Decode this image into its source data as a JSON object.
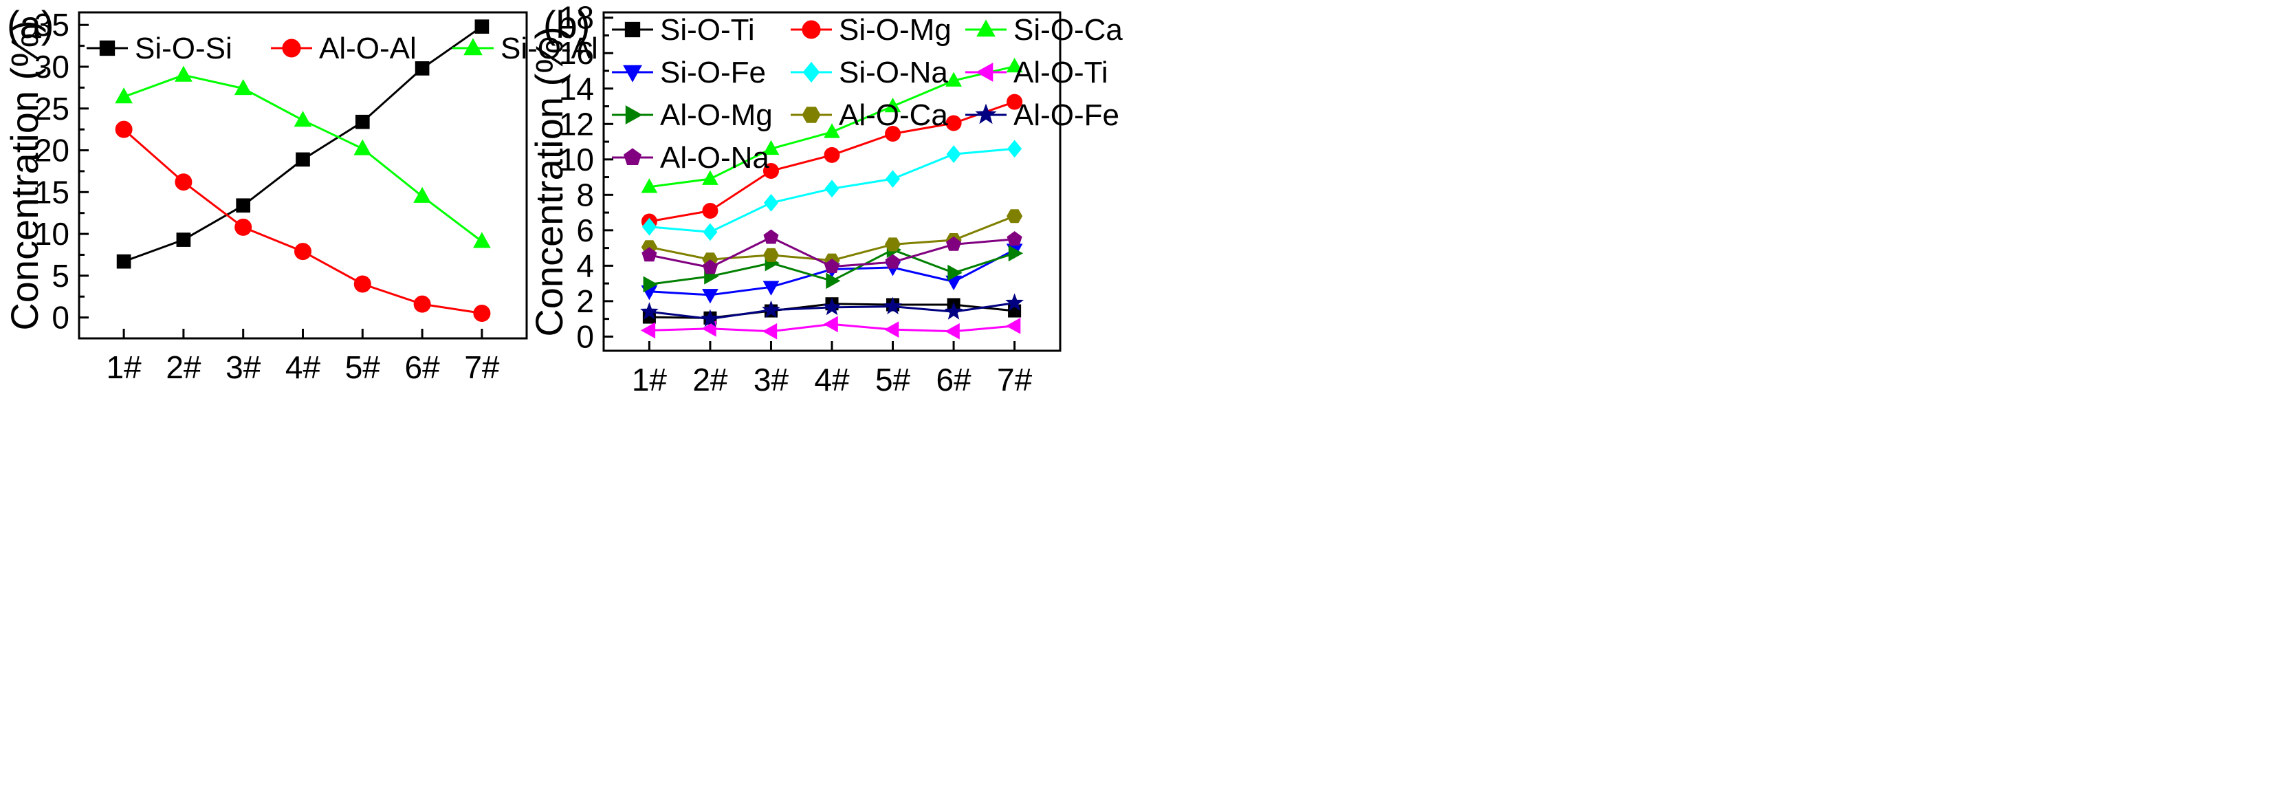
{
  "chart_data": [
    {
      "panel_label": "(a)",
      "type": "line",
      "categories": [
        "1#",
        "2#",
        "3#",
        "4#",
        "5#",
        "6#",
        "7#"
      ],
      "ylabel": "Concentration (%)",
      "xlabel": "",
      "ylim": [
        -2.5,
        36.5
      ],
      "yticks": [
        "0",
        "5",
        "10",
        "15",
        "20",
        "25",
        "30",
        "35"
      ],
      "legend_position": "top-left",
      "series": [
        {
          "name": "Si-O-Si",
          "color": "#000000",
          "marker": "square",
          "values": [
            6.7,
            9.3,
            13.4,
            18.9,
            23.4,
            29.8,
            34.8
          ]
        },
        {
          "name": "Al-O-Al",
          "color": "#ff0000",
          "marker": "circle",
          "values": [
            22.5,
            16.2,
            10.8,
            7.9,
            4.0,
            1.6,
            0.5
          ]
        },
        {
          "name": "Si-O-Al",
          "color": "#00ff00",
          "marker": "triangle",
          "values": [
            26.4,
            29.0,
            27.4,
            23.6,
            20.2,
            14.5,
            9.1
          ]
        }
      ]
    },
    {
      "panel_label": "(b)",
      "type": "line",
      "categories": [
        "1#",
        "2#",
        "3#",
        "4#",
        "5#",
        "6#",
        "7#"
      ],
      "ylabel": "Concentration (%)",
      "xlabel": "",
      "ylim": [
        -0.8,
        18.3
      ],
      "yticks": [
        "0",
        "2",
        "4",
        "6",
        "8",
        "10",
        "12",
        "14",
        "16",
        "18"
      ],
      "legend_position": "top-left",
      "series": [
        {
          "name": "Si-O-Ti",
          "color": "#000000",
          "marker": "square",
          "values": [
            1.1,
            1.05,
            1.45,
            1.85,
            1.8,
            1.8,
            1.45
          ]
        },
        {
          "name": "Si-O-Mg",
          "color": "#ff0000",
          "marker": "circle",
          "values": [
            6.5,
            7.1,
            9.35,
            10.25,
            11.45,
            12.05,
            13.25
          ]
        },
        {
          "name": "Si-O-Ca",
          "color": "#00ff00",
          "marker": "triangle",
          "values": [
            8.45,
            8.9,
            10.6,
            11.55,
            13.0,
            14.45,
            15.25
          ]
        },
        {
          "name": "Si-O-Fe",
          "color": "#0000ff",
          "marker": "triangle-down",
          "values": [
            2.55,
            2.35,
            2.8,
            3.8,
            3.9,
            3.1,
            4.9
          ]
        },
        {
          "name": "Si-O-Na",
          "color": "#00ffff",
          "marker": "diamond",
          "values": [
            6.2,
            5.9,
            7.55,
            8.35,
            8.9,
            10.3,
            10.6
          ]
        },
        {
          "name": "Al-O-Ti",
          "color": "#ff00ff",
          "marker": "triangle-left",
          "values": [
            0.35,
            0.45,
            0.3,
            0.7,
            0.4,
            0.3,
            0.6
          ]
        },
        {
          "name": "Al-O-Mg",
          "color": "#008000",
          "marker": "triangle-right",
          "values": [
            2.95,
            3.4,
            4.15,
            3.15,
            4.9,
            3.6,
            4.7
          ]
        },
        {
          "name": "Al-O-Ca",
          "color": "#808000",
          "marker": "hexagon",
          "values": [
            5.05,
            4.35,
            4.6,
            4.3,
            5.2,
            5.45,
            6.8
          ]
        },
        {
          "name": "Al-O-Fe",
          "color": "#000080",
          "marker": "star",
          "values": [
            1.4,
            1.0,
            1.5,
            1.65,
            1.7,
            1.4,
            1.9
          ]
        },
        {
          "name": "Al-O-Na",
          "color": "#800080",
          "marker": "pentagon",
          "values": [
            4.6,
            3.9,
            5.6,
            3.95,
            4.2,
            5.2,
            5.5
          ]
        }
      ]
    }
  ]
}
